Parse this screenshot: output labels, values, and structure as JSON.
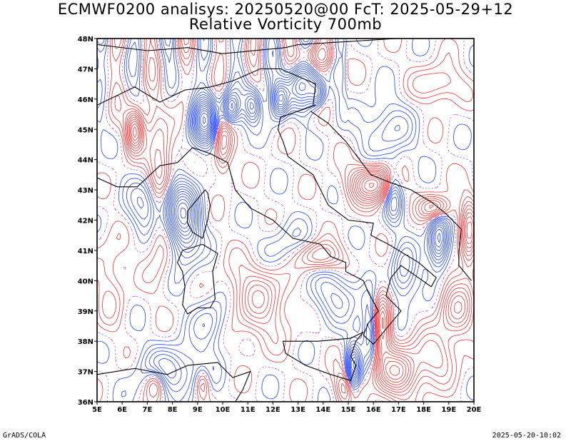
{
  "title": {
    "line1": "ECMWF0200 analisys: 20250520@00 FcT: 2025-05-29+12",
    "line2": "Relative Vorticity 700mb"
  },
  "map": {
    "lon_range": [
      5,
      20
    ],
    "lat_range": [
      36,
      48
    ],
    "lon_labels": [
      "5E",
      "6E",
      "7E",
      "8E",
      "9E",
      "10E",
      "11E",
      "12E",
      "13E",
      "14E",
      "15E",
      "16E",
      "17E",
      "18E",
      "19E",
      "20E"
    ],
    "lat_labels": [
      "36N",
      "37N",
      "38N",
      "39N",
      "40N",
      "41N",
      "42N",
      "43N",
      "44N",
      "45N",
      "46N",
      "47N",
      "48N"
    ],
    "colors": {
      "positive": "#ee3333",
      "negative": "#2244ee",
      "zero_contour": "#cc44cc",
      "coastline": "#000000",
      "frame": "#000000",
      "grid": "#888888"
    },
    "icons": [
      "contour-field",
      "coastline",
      "political-boundaries"
    ]
  },
  "footer": {
    "left": "GrADS/COLA",
    "right": "2025-05-20-10:02"
  }
}
